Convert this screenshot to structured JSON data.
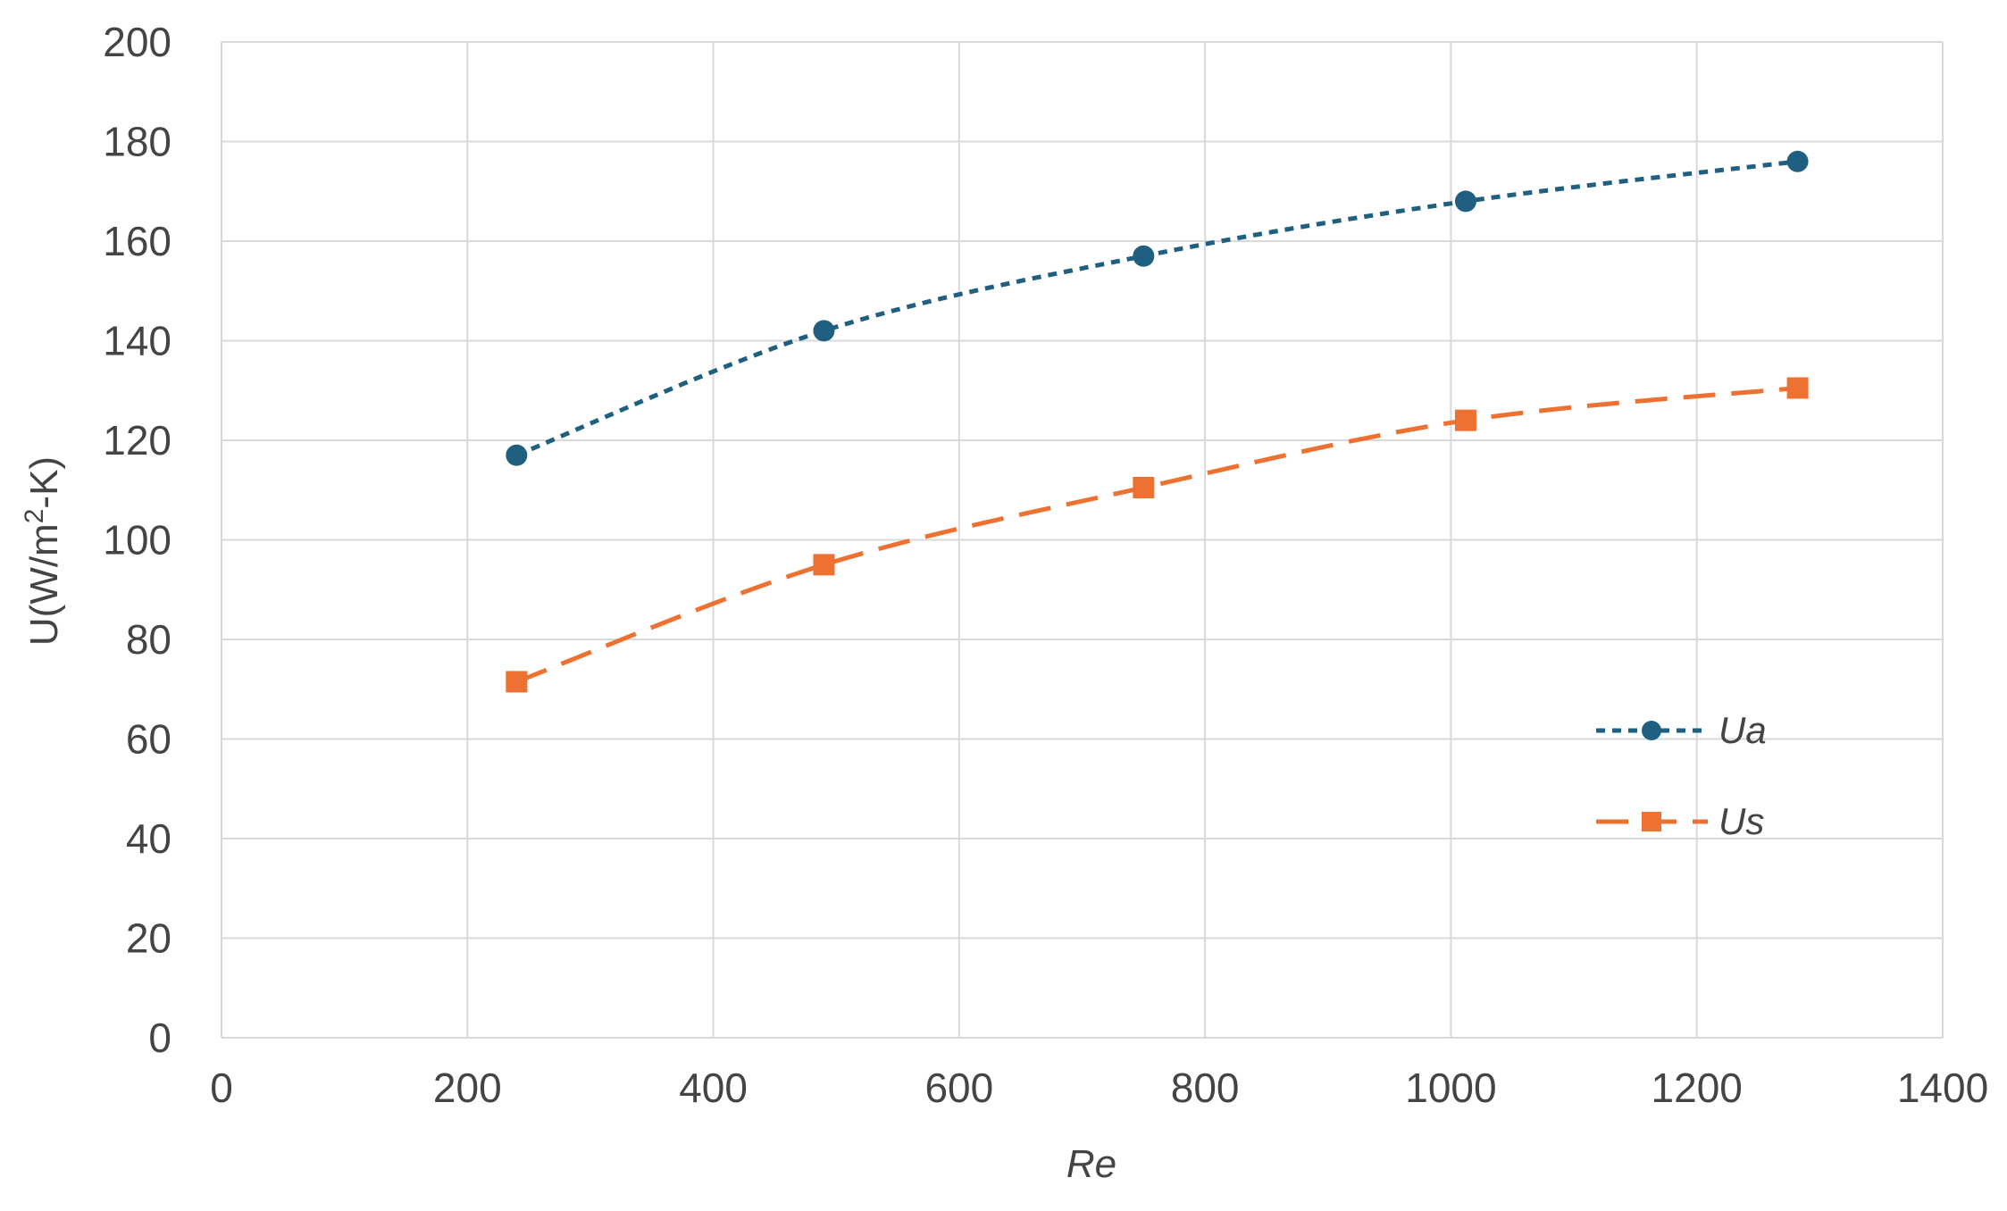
{
  "chart_data": {
    "type": "line",
    "xlabel": "Re",
    "ylabel_main": "U(W/m",
    "ylabel_sup": "2",
    "ylabel_end": "-K)",
    "xlim": [
      0,
      1400
    ],
    "ylim": [
      0,
      200
    ],
    "x_ticks": [
      0,
      200,
      400,
      600,
      800,
      1000,
      1200,
      1400
    ],
    "y_ticks": [
      0,
      20,
      40,
      60,
      80,
      100,
      120,
      140,
      160,
      180,
      200
    ],
    "grid": true,
    "legend_position": "right-middle",
    "series": [
      {
        "name": "Ua",
        "color": "#1f5f7f",
        "marker": "circle",
        "line_style": "short-dash",
        "x": [
          240,
          490,
          750,
          1012,
          1282
        ],
        "y": [
          117,
          142,
          157,
          168,
          176
        ]
      },
      {
        "name": "Us",
        "color": "#ed7232",
        "marker": "square",
        "line_style": "long-dash",
        "x": [
          240,
          490,
          750,
          1012,
          1282
        ],
        "y": [
          71.5,
          95,
          110.5,
          124,
          130.5
        ]
      }
    ]
  }
}
